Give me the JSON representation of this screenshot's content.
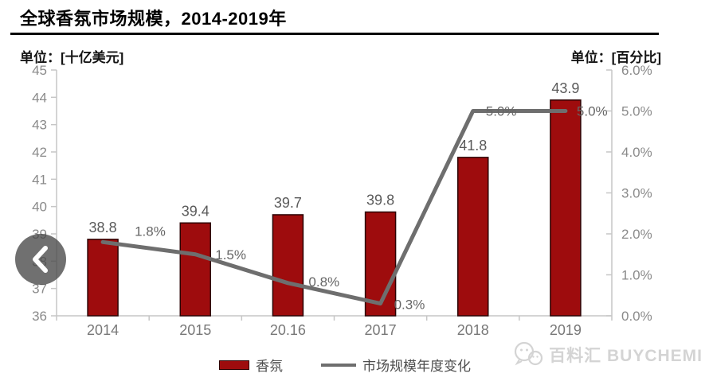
{
  "page": {
    "title": "全球香氛市场规模，2014-2019年",
    "unit_left": "单位：[十亿美元]",
    "unit_right": "单位：[百分比]"
  },
  "colors": {
    "bar": "#9e0c0d",
    "bar_border": "#2b0304",
    "line": "#6e6e6e",
    "axis": "#c6c6c6",
    "axis_label": "#8a8a8a",
    "x_label": "#787878",
    "data_label": "#5a5a5a",
    "pct_label": "#666666",
    "watermark": "#d4d4d4"
  },
  "chart_data": {
    "type": "bar+line combo, dual axis",
    "categories": [
      "2014",
      "2015",
      "20.16",
      "2017",
      "2018",
      "2019"
    ],
    "series": [
      {
        "name": "香氛",
        "type": "bar",
        "axis": "left",
        "values": [
          38.8,
          39.4,
          39.7,
          39.8,
          41.8,
          43.9
        ],
        "labels": [
          "38.8",
          "39.4",
          "39.7",
          "39.8",
          "41.8",
          "43.9"
        ]
      },
      {
        "name": "市场规模年度变化",
        "type": "line",
        "axis": "right",
        "values": [
          1.8,
          1.5,
          0.8,
          0.3,
          5.0,
          5.0
        ],
        "labels": [
          "1.8%",
          "1.5%",
          "0.8%",
          "0.3%",
          "5.0%",
          "5.0%"
        ]
      }
    ],
    "left_axis": {
      "min": 36,
      "max": 45,
      "step": 1,
      "ticks": [
        "36",
        "37",
        "38",
        "39",
        "40",
        "41",
        "42",
        "43",
        "44",
        "45"
      ]
    },
    "right_axis": {
      "min": 0,
      "max": 6,
      "step": 1,
      "ticks": [
        "0.0%",
        "1.0%",
        "2.0%",
        "3.0%",
        "4.0%",
        "5.0%",
        "6.0%"
      ]
    },
    "legend": [
      {
        "label": "香氛",
        "swatch": "bar"
      },
      {
        "label": "市场规模年度变化",
        "swatch": "line"
      }
    ],
    "legend_position": "bottom",
    "grid": false
  },
  "watermark": {
    "text": "百料汇 BUYCHEMI",
    "icon": "chat-bubbles-logo"
  },
  "nav": {
    "prev_icon": "chevron-left"
  }
}
